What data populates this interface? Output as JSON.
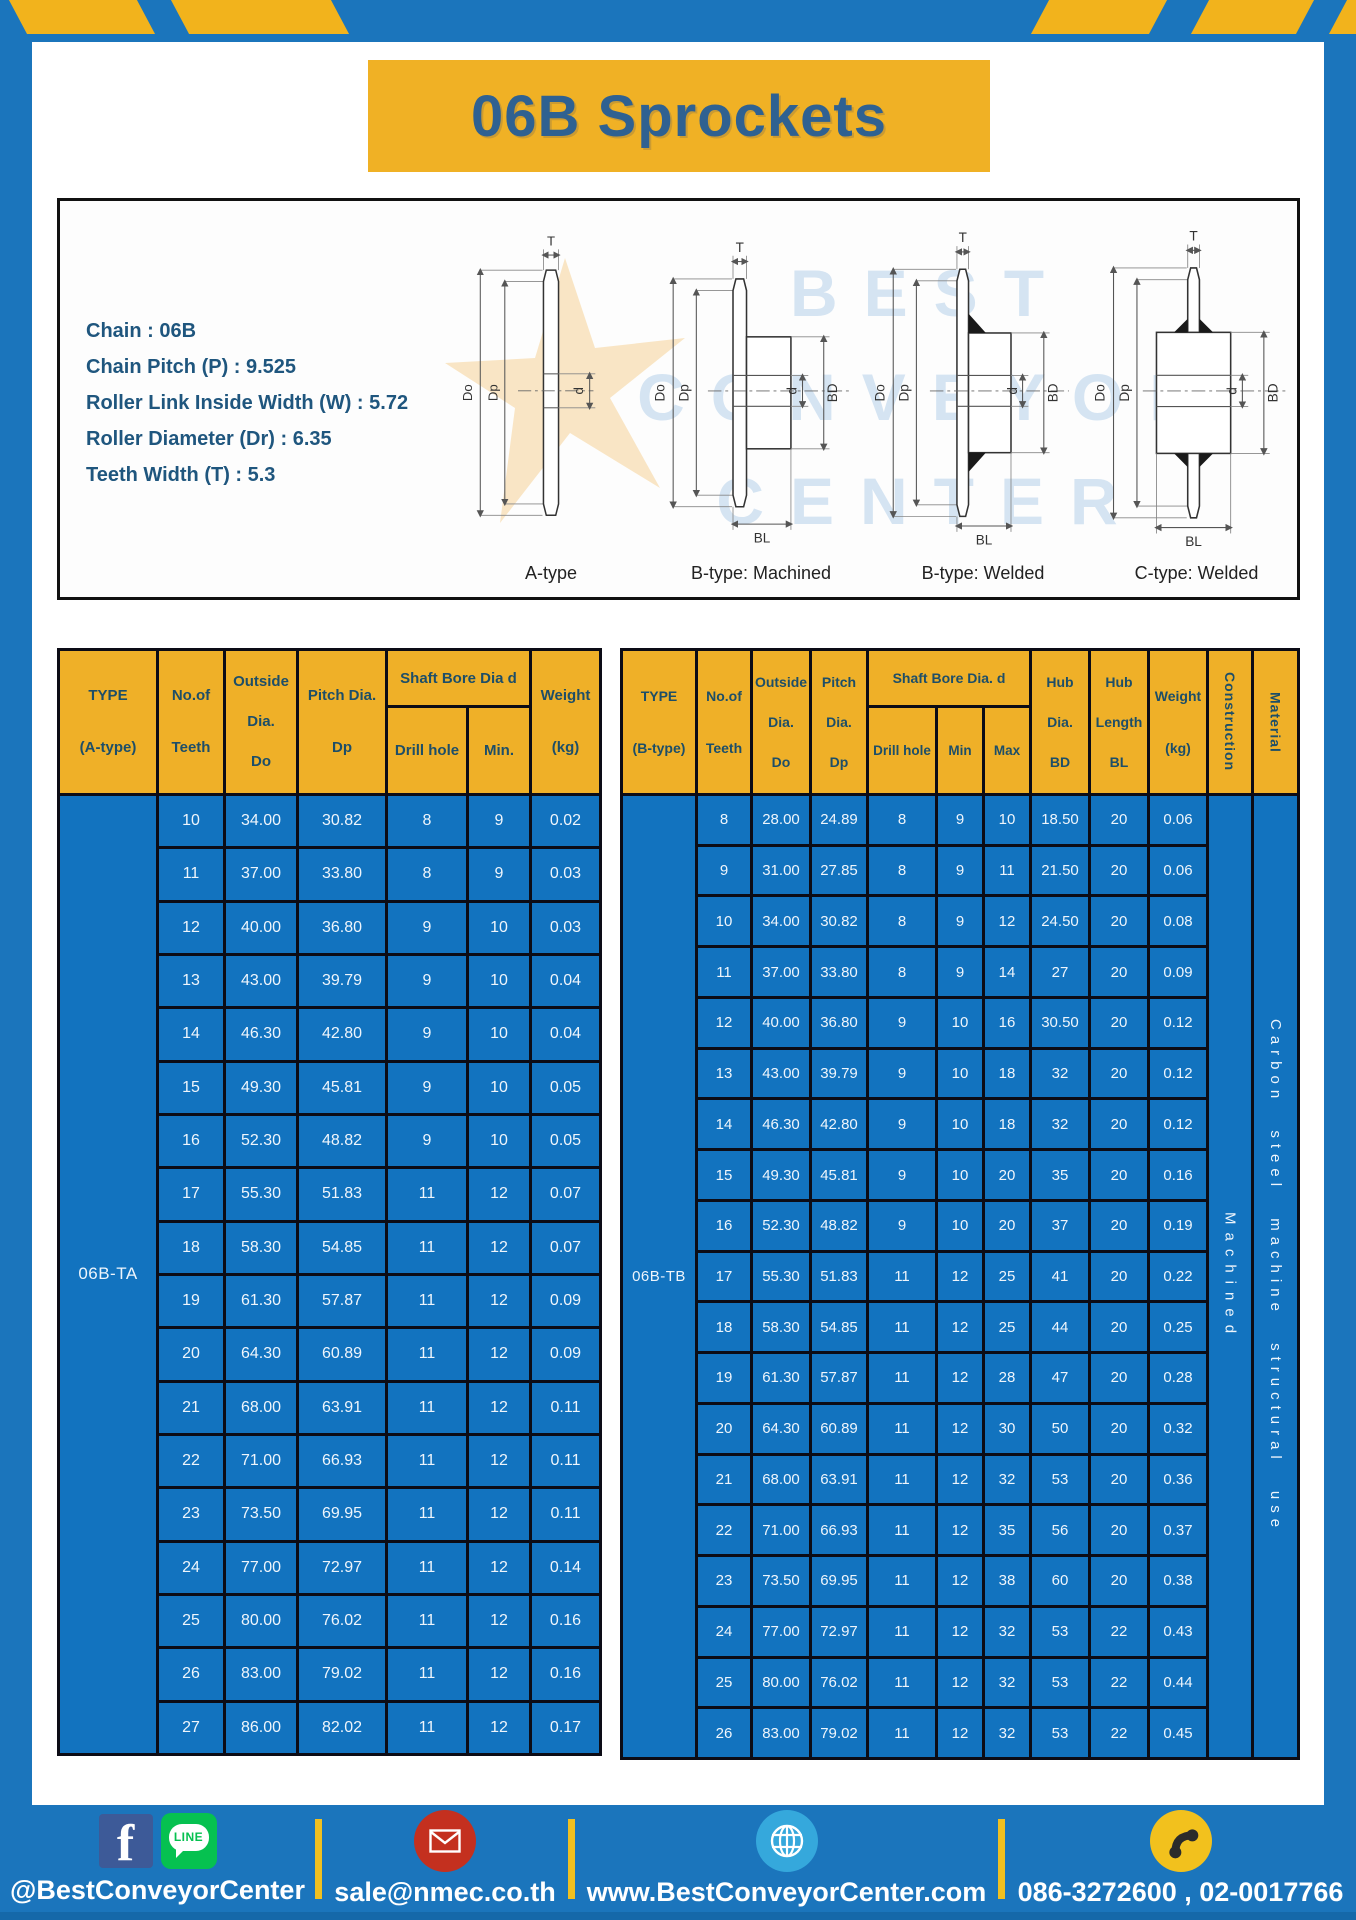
{
  "title": "06B Sprockets",
  "colors": {
    "brand_blue": "#1b75bc",
    "brand_yellow": "#f0b125",
    "cell_blue": "#1273bf",
    "header_yellow": "#efb028",
    "header_text": "#1d4e68"
  },
  "specs": {
    "lines": [
      "Chain : 06B",
      "Chain Pitch (P) : 9.525",
      "Roller Link Inside Width (W) : 5.72",
      "Roller Diameter (Dr) : 6.35",
      "Teeth Width (T) : 5.3"
    ]
  },
  "watermark": {
    "line1": "BEST",
    "line2": "CONVEYOR",
    "line3": "CENTER"
  },
  "drawings": {
    "dims": {
      "t": "T",
      "do": "Do",
      "dp": "Dp",
      "d": "d",
      "bd": "BD",
      "bl": "BL"
    },
    "captions": [
      "A-type",
      "B-type: Machined",
      "B-type: Welded",
      "C-type: Welded"
    ]
  },
  "table_a": {
    "headers": {
      "type": "TYPE\n(A-type)",
      "teeth": "No.of\nTeeth",
      "outside": "Outside\nDia.\nDo",
      "pitch": "Pitch Dia.\nDp",
      "shaft_bore": "Shaft Bore Dia d",
      "drill": "Drill hole",
      "min": "Min.",
      "weight": "Weight\n(kg)"
    },
    "type_value": "06B-TA",
    "rows": [
      [
        "10",
        "34.00",
        "30.82",
        "8",
        "9",
        "0.02"
      ],
      [
        "11",
        "37.00",
        "33.80",
        "8",
        "9",
        "0.03"
      ],
      [
        "12",
        "40.00",
        "36.80",
        "9",
        "10",
        "0.03"
      ],
      [
        "13",
        "43.00",
        "39.79",
        "9",
        "10",
        "0.04"
      ],
      [
        "14",
        "46.30",
        "42.80",
        "9",
        "10",
        "0.04"
      ],
      [
        "15",
        "49.30",
        "45.81",
        "9",
        "10",
        "0.05"
      ],
      [
        "16",
        "52.30",
        "48.82",
        "9",
        "10",
        "0.05"
      ],
      [
        "17",
        "55.30",
        "51.83",
        "11",
        "12",
        "0.07"
      ],
      [
        "18",
        "58.30",
        "54.85",
        "11",
        "12",
        "0.07"
      ],
      [
        "19",
        "61.30",
        "57.87",
        "11",
        "12",
        "0.09"
      ],
      [
        "20",
        "64.30",
        "60.89",
        "11",
        "12",
        "0.09"
      ],
      [
        "21",
        "68.00",
        "63.91",
        "11",
        "12",
        "0.11"
      ],
      [
        "22",
        "71.00",
        "66.93",
        "11",
        "12",
        "0.11"
      ],
      [
        "23",
        "73.50",
        "69.95",
        "11",
        "12",
        "0.11"
      ],
      [
        "24",
        "77.00",
        "72.97",
        "11",
        "12",
        "0.14"
      ],
      [
        "25",
        "80.00",
        "76.02",
        "11",
        "12",
        "0.16"
      ],
      [
        "26",
        "83.00",
        "79.02",
        "11",
        "12",
        "0.16"
      ],
      [
        "27",
        "86.00",
        "82.02",
        "11",
        "12",
        "0.17"
      ]
    ]
  },
  "table_b": {
    "headers": {
      "type": "TYPE\n(B-type)",
      "teeth": "No.of\nTeeth",
      "outside": "Outside\nDia.\nDo",
      "pitch": "Pitch\nDia.\nDp",
      "shaft_bore": "Shaft Bore Dia. d",
      "drill": "Drill hole",
      "min": "Min",
      "max": "Max",
      "hub_dia": "Hub\nDia.\nBD",
      "hub_len": "Hub\nLength\nBL",
      "weight": "Weight\n(kg)",
      "construction": "Construction",
      "material": "Material"
    },
    "type_value": "06B-TB",
    "construction_value": "Machined",
    "material_value": "Carbon steel machine structural use",
    "rows": [
      [
        "8",
        "28.00",
        "24.89",
        "8",
        "9",
        "10",
        "18.50",
        "20",
        "0.06"
      ],
      [
        "9",
        "31.00",
        "27.85",
        "8",
        "9",
        "11",
        "21.50",
        "20",
        "0.06"
      ],
      [
        "10",
        "34.00",
        "30.82",
        "8",
        "9",
        "12",
        "24.50",
        "20",
        "0.08"
      ],
      [
        "11",
        "37.00",
        "33.80",
        "8",
        "9",
        "14",
        "27",
        "20",
        "0.09"
      ],
      [
        "12",
        "40.00",
        "36.80",
        "9",
        "10",
        "16",
        "30.50",
        "20",
        "0.12"
      ],
      [
        "13",
        "43.00",
        "39.79",
        "9",
        "10",
        "18",
        "32",
        "20",
        "0.12"
      ],
      [
        "14",
        "46.30",
        "42.80",
        "9",
        "10",
        "18",
        "32",
        "20",
        "0.12"
      ],
      [
        "15",
        "49.30",
        "45.81",
        "9",
        "10",
        "20",
        "35",
        "20",
        "0.16"
      ],
      [
        "16",
        "52.30",
        "48.82",
        "9",
        "10",
        "20",
        "37",
        "20",
        "0.19"
      ],
      [
        "17",
        "55.30",
        "51.83",
        "11",
        "12",
        "25",
        "41",
        "20",
        "0.22"
      ],
      [
        "18",
        "58.30",
        "54.85",
        "11",
        "12",
        "25",
        "44",
        "20",
        "0.25"
      ],
      [
        "19",
        "61.30",
        "57.87",
        "11",
        "12",
        "28",
        "47",
        "20",
        "0.28"
      ],
      [
        "20",
        "64.30",
        "60.89",
        "11",
        "12",
        "30",
        "50",
        "20",
        "0.32"
      ],
      [
        "21",
        "68.00",
        "63.91",
        "11",
        "12",
        "32",
        "53",
        "20",
        "0.36"
      ],
      [
        "22",
        "71.00",
        "66.93",
        "11",
        "12",
        "35",
        "56",
        "20",
        "0.37"
      ],
      [
        "23",
        "73.50",
        "69.95",
        "11",
        "12",
        "38",
        "60",
        "20",
        "0.38"
      ],
      [
        "24",
        "77.00",
        "72.97",
        "11",
        "12",
        "32",
        "53",
        "22",
        "0.43"
      ],
      [
        "25",
        "80.00",
        "76.02",
        "11",
        "12",
        "32",
        "53",
        "22",
        "0.44"
      ],
      [
        "26",
        "83.00",
        "79.02",
        "11",
        "12",
        "32",
        "53",
        "22",
        "0.45"
      ]
    ]
  },
  "footer": {
    "social_handle": "@BestConveyorCenter",
    "line_label": "LINE",
    "email": "sale@nmec.co.th",
    "website": "www.BestConveyorCenter.com",
    "phones": "086-3272600 , 02-0017766"
  }
}
